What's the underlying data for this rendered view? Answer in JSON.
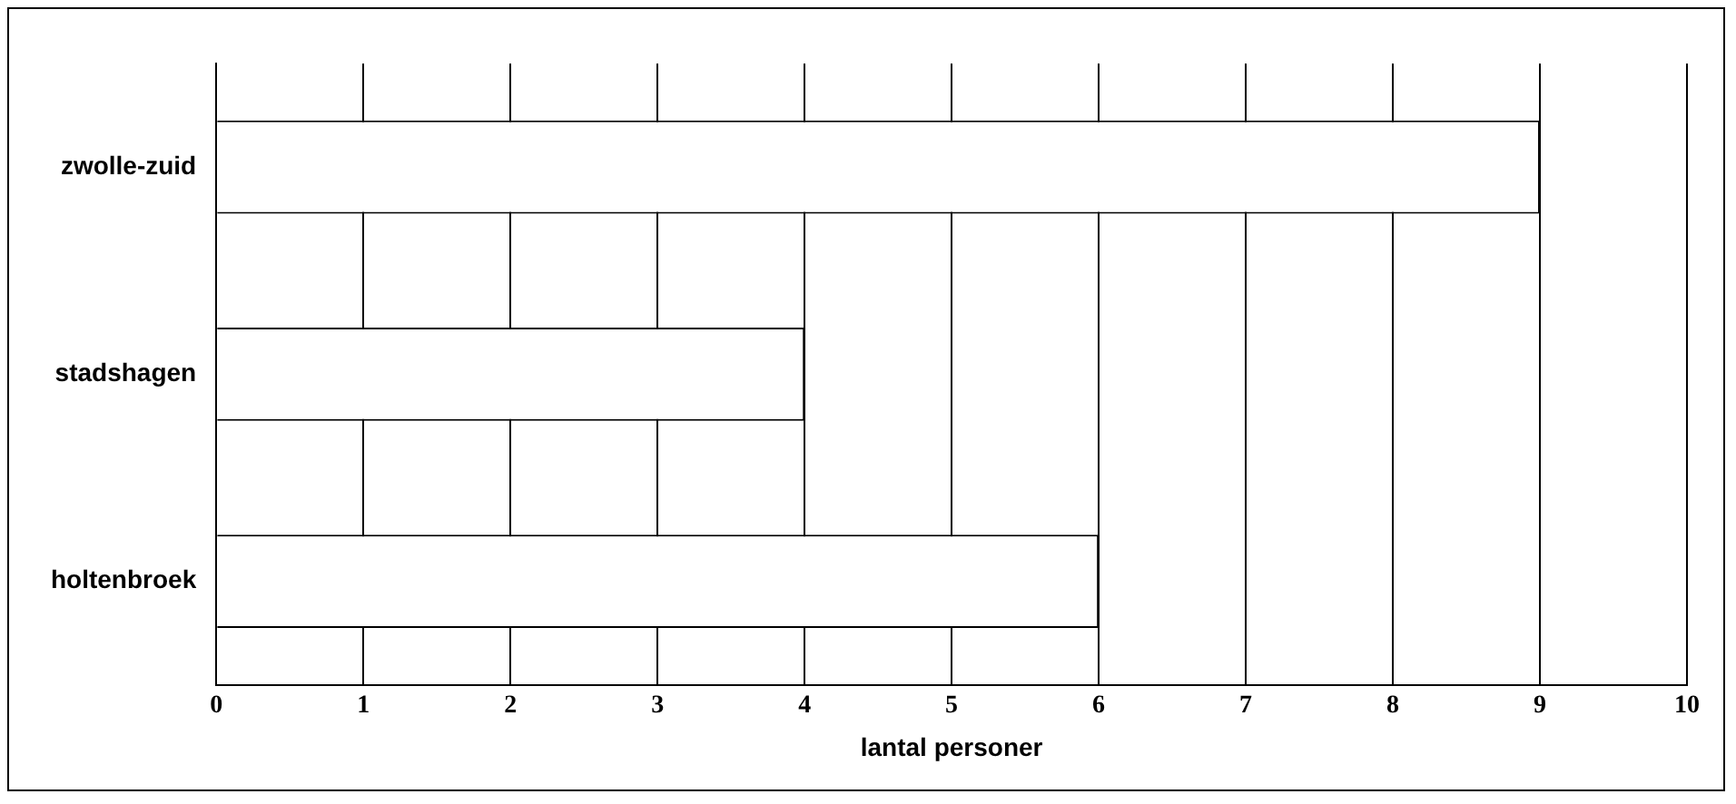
{
  "chart_data": {
    "type": "bar",
    "orientation": "horizontal",
    "xlabel": "lantal personer",
    "categories": [
      "zwolle-zuid",
      "stadshagen",
      "holtenbroek"
    ],
    "values": [
      9,
      4,
      6
    ],
    "color": "#ffffff",
    "xlim": [
      0,
      10
    ],
    "xticks": [
      0,
      1,
      2,
      3,
      4,
      5,
      6,
      7,
      8,
      9,
      10
    ],
    "grid": "x",
    "legend": false
  }
}
